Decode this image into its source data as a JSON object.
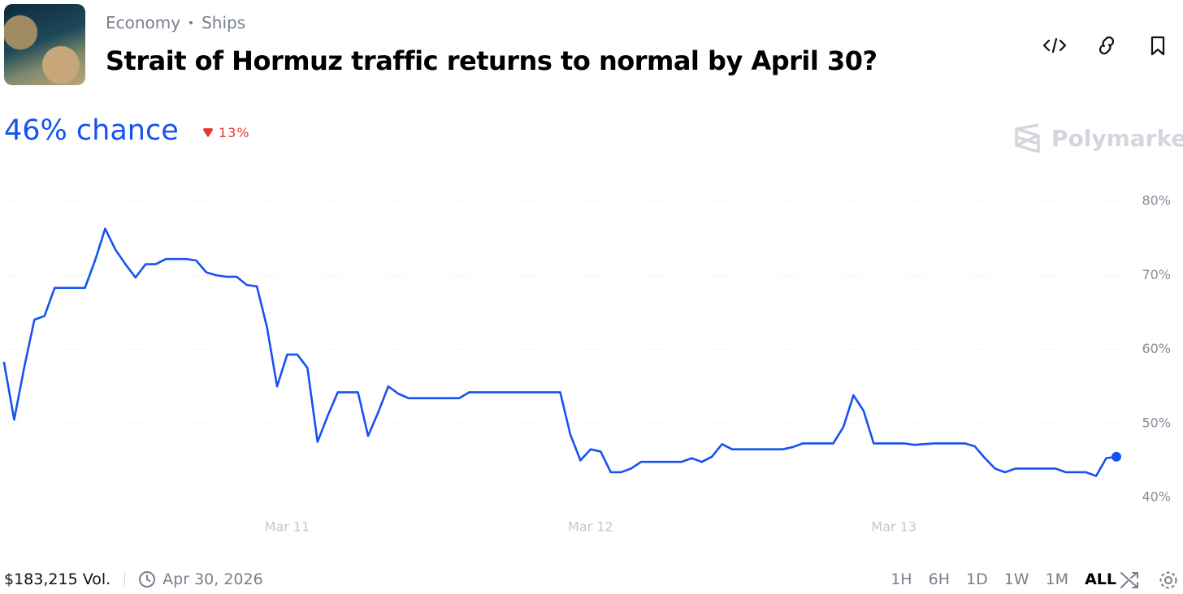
{
  "header": {
    "breadcrumb": [
      "Economy",
      "Ships"
    ],
    "title": "Strait of Hormuz traffic returns to normal by April 30?"
  },
  "summary": {
    "chance": "46% chance",
    "change": "13%",
    "brand": "Polymarket"
  },
  "footer": {
    "volume": "$183,215 Vol.",
    "end_date": "Apr 30, 2026",
    "ranges": [
      "1H",
      "6H",
      "1D",
      "1W",
      "1M",
      "ALL"
    ],
    "active_range": "ALL"
  },
  "chart_data": {
    "type": "line",
    "color": "#1652f0",
    "grid": true,
    "end_marker": true,
    "categories": [
      null,
      null,
      null,
      null,
      null,
      null,
      null,
      null,
      null,
      null,
      null,
      null,
      null,
      null,
      null,
      null,
      null,
      null,
      null,
      null,
      null,
      null,
      null,
      null,
      null,
      null,
      null,
      null,
      "Mar 11",
      null,
      null,
      null,
      null,
      null,
      null,
      null,
      null,
      null,
      null,
      null,
      null,
      null,
      null,
      null,
      null,
      null,
      null,
      null,
      null,
      null,
      null,
      null,
      null,
      null,
      null,
      null,
      null,
      null,
      "Mar 12",
      null,
      null,
      null,
      null,
      null,
      null,
      null,
      null,
      null,
      null,
      null,
      null,
      null,
      null,
      null,
      null,
      null,
      null,
      null,
      null,
      null,
      null,
      null,
      null,
      null,
      null,
      null,
      null,
      null,
      "Mar 13",
      null,
      null,
      null,
      null,
      null,
      null,
      null,
      null,
      null,
      null,
      null,
      null,
      null,
      null,
      null,
      null,
      null,
      null,
      null,
      null,
      null,
      null
    ],
    "values": [
      58.2,
      50.5,
      57.6,
      64.0,
      64.5,
      68.3,
      68.3,
      68.3,
      68.3,
      72,
      76.3,
      73.5,
      71.5,
      69.7,
      71.5,
      71.5,
      72.2,
      72.2,
      72.2,
      72,
      70.4,
      70,
      69.8,
      69.8,
      68.7,
      68.5,
      63,
      55,
      59.3,
      59.3,
      57.5,
      47.5,
      51,
      54.2,
      54.2,
      54.2,
      48.3,
      51.5,
      55,
      54,
      53.4,
      53.4,
      53.4,
      53.4,
      53.4,
      53.4,
      54.2,
      54.2,
      54.2,
      54.2,
      54.2,
      54.2,
      54.2,
      54.2,
      54.2,
      54.2,
      48.5,
      45,
      46.5,
      46.2,
      43.4,
      43.4,
      43.9,
      44.8,
      44.8,
      44.8,
      44.8,
      44.8,
      45.3,
      44.8,
      45.5,
      47.2,
      46.5,
      46.5,
      46.5,
      46.5,
      46.5,
      46.5,
      46.8,
      47.3,
      47.3,
      47.3,
      47.3,
      49.5,
      53.8,
      51.7,
      47.3,
      47.3,
      47.3,
      47.3,
      47.1,
      47.2,
      47.3,
      47.3,
      47.3,
      47.3,
      46.9,
      45.3,
      43.9,
      43.4,
      43.9,
      43.9,
      43.9,
      43.9,
      43.9,
      43.4,
      43.4,
      43.4,
      42.9,
      45.3,
      45.5
    ],
    "ylim": [
      40,
      80
    ],
    "yticks": [
      {
        "value": 40,
        "label": "40%"
      },
      {
        "value": 50,
        "label": "50%"
      },
      {
        "value": 60,
        "label": "60%"
      },
      {
        "value": 70,
        "label": "70%"
      },
      {
        "value": 80,
        "label": "80%"
      }
    ]
  }
}
